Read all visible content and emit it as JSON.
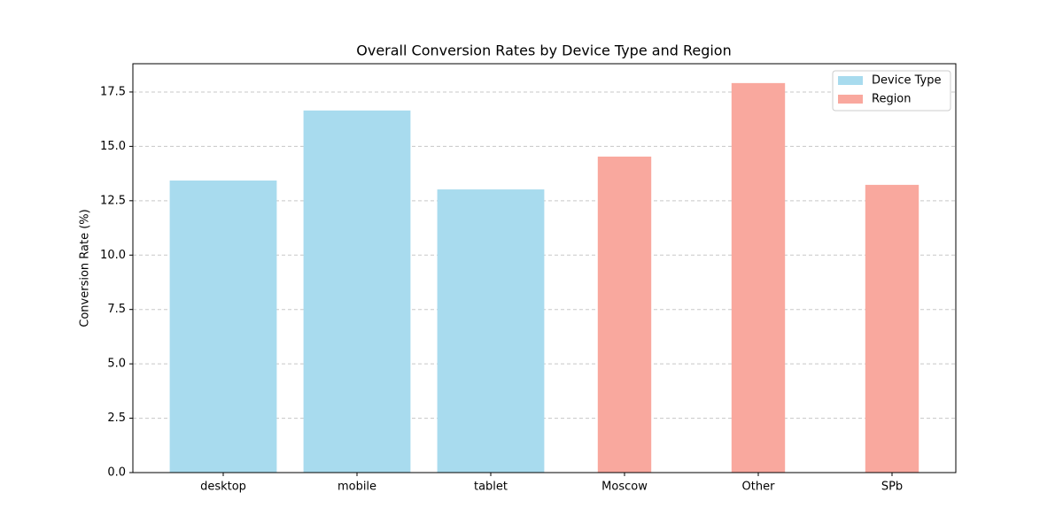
{
  "chart_data": {
    "type": "bar",
    "title": "Overall Conversion Rates by Device Type and Region",
    "ylabel": "Conversion Rate (%)",
    "categories": [
      "desktop",
      "mobile",
      "tablet",
      "Moscow",
      "Other",
      "SPb"
    ],
    "series": [
      {
        "name": "Device Type",
        "color": "#a8dbee",
        "values": [
          13.43,
          16.65,
          13.02,
          null,
          null,
          null
        ]
      },
      {
        "name": "Region",
        "color": "#f9a89e",
        "values": [
          null,
          null,
          null,
          14.53,
          17.91,
          13.23
        ]
      }
    ],
    "ylim": [
      0,
      18.8
    ],
    "yticks": [
      {
        "value": 0,
        "label": "0.0"
      },
      2.5,
      {
        "value": 5,
        "label": "5.0"
      },
      7.5,
      {
        "value": 10,
        "label": "10.0"
      },
      12.5,
      {
        "value": 15,
        "label": "15.0"
      },
      17.5
    ],
    "grid": true,
    "legend": "upper right"
  }
}
